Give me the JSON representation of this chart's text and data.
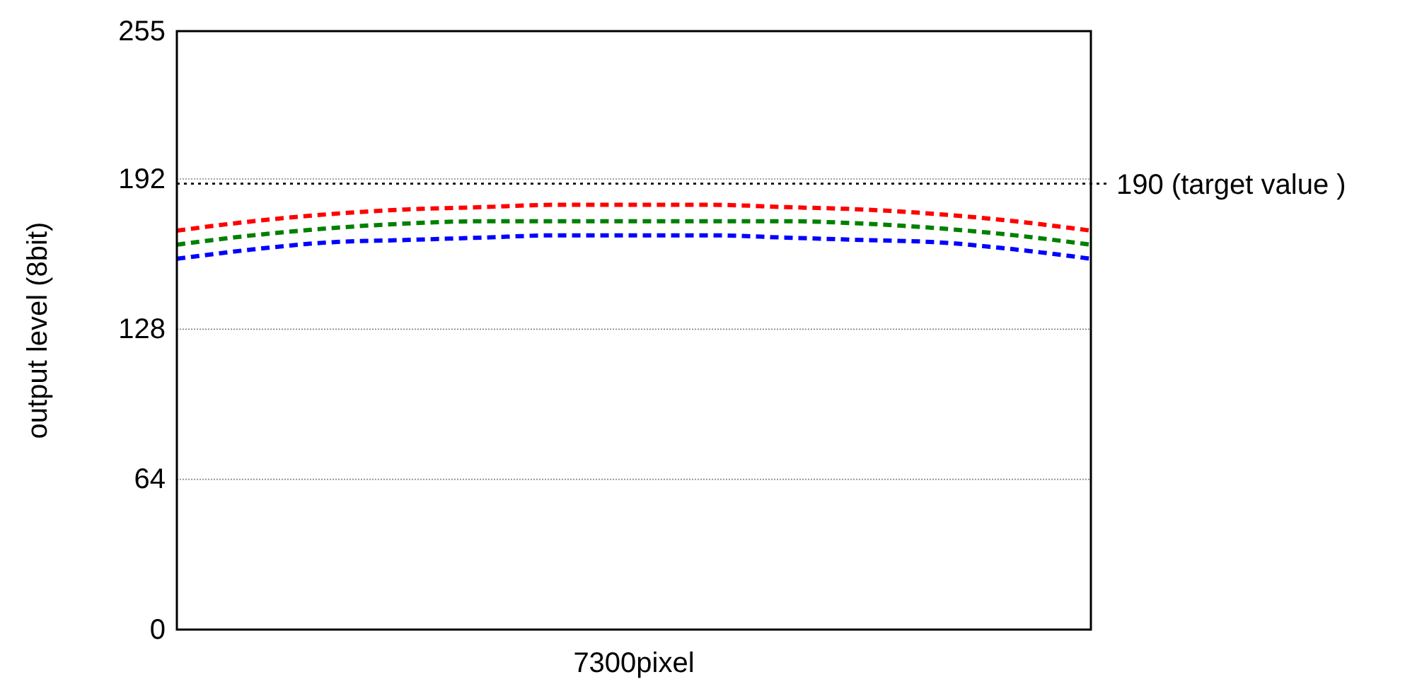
{
  "chart_data": {
    "type": "line",
    "xlabel": "7300pixel",
    "ylabel": "output level (8bit)",
    "categories": [
      null,
      null,
      null,
      null,
      null,
      null,
      null,
      null,
      null,
      null,
      null,
      null,
      null
    ],
    "series": [
      {
        "color": "#ff0000",
        "values": [
          170,
          174,
          177,
          179,
          180,
          181,
          181,
          181,
          180,
          179,
          177,
          174,
          170
        ]
      },
      {
        "color": "#008000",
        "values": [
          164,
          168,
          171,
          173,
          174,
          174,
          174,
          174,
          174,
          173,
          171,
          168,
          164
        ]
      },
      {
        "color": "#0000ff",
        "values": [
          158,
          162,
          165,
          166,
          167,
          168,
          168,
          168,
          167,
          166,
          165,
          162,
          158
        ]
      }
    ],
    "ylim": [
      0,
      255
    ],
    "yticks": [
      0,
      64,
      128,
      192,
      255
    ],
    "grid": "y",
    "tick_labels": "y",
    "line_style": "dashed",
    "ref_lines": [
      {
        "axis": "y",
        "value": 190,
        "label": "190 (target value )",
        "color": "#000000",
        "line_style": "dotted"
      }
    ]
  }
}
